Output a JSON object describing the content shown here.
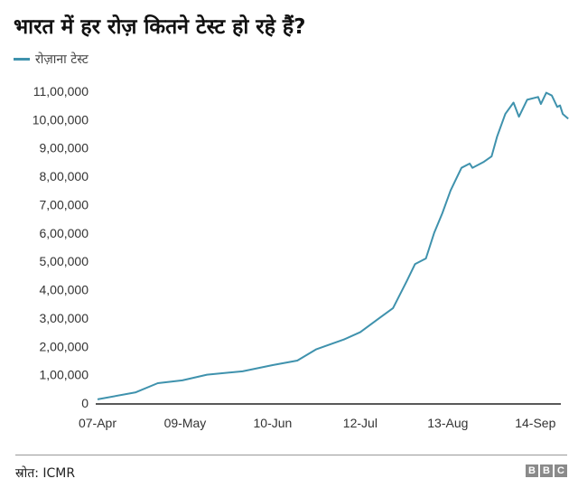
{
  "chart_data": {
    "type": "line",
    "title": "भारत में हर रोज़ कितने टेस्ट हो रहे हैं?",
    "legend": "रोज़ाना टेस्ट",
    "legend_placement": "top-left",
    "color": "#3f92ad",
    "xlabel": "",
    "ylabel": "",
    "ylim": [
      0,
      1100000
    ],
    "yticks": [
      0,
      100000,
      200000,
      300000,
      400000,
      500000,
      600000,
      700000,
      800000,
      900000,
      1000000,
      1100000
    ],
    "ytick_labels": [
      "0",
      "1,00,000",
      "2,00,000",
      "3,00,000",
      "4,00,000",
      "5,00,000",
      "6,00,000",
      "7,00,000",
      "8,00,000",
      "9,00,000",
      "10,00,000",
      "11,00,000"
    ],
    "x_unit": "days since 07-Apr",
    "xlim": [
      0,
      169
    ],
    "xticks": [
      0,
      32,
      64,
      96,
      128,
      160
    ],
    "xtick_labels": [
      "07-Apr",
      "09-May",
      "10-Jun",
      "12-Jul",
      "13-Aug",
      "14-Sep"
    ],
    "series": [
      {
        "name": "रोज़ाना टेस्ट",
        "x": [
          0,
          14,
          22,
          31,
          40,
          53,
          64,
          73,
          80,
          90,
          96,
          103,
          108,
          113,
          116,
          120,
          123,
          126,
          129,
          133,
          136,
          137,
          141,
          144,
          146,
          149,
          152,
          154,
          157,
          161,
          162,
          164,
          166,
          168,
          169,
          170,
          172
        ],
        "values": [
          13000,
          38000,
          70000,
          80000,
          100000,
          112000,
          134000,
          150000,
          190000,
          224000,
          250000,
          300000,
          335000,
          430000,
          490000,
          510000,
          600000,
          670000,
          750000,
          830000,
          845000,
          830000,
          850000,
          870000,
          940000,
          1020000,
          1060000,
          1010000,
          1070000,
          1080000,
          1055000,
          1095000,
          1085000,
          1045000,
          1050000,
          1020000,
          1003000
        ]
      }
    ]
  },
  "footer": {
    "source": "स्रोत: ICMR",
    "logo": [
      "B",
      "B",
      "C"
    ]
  }
}
